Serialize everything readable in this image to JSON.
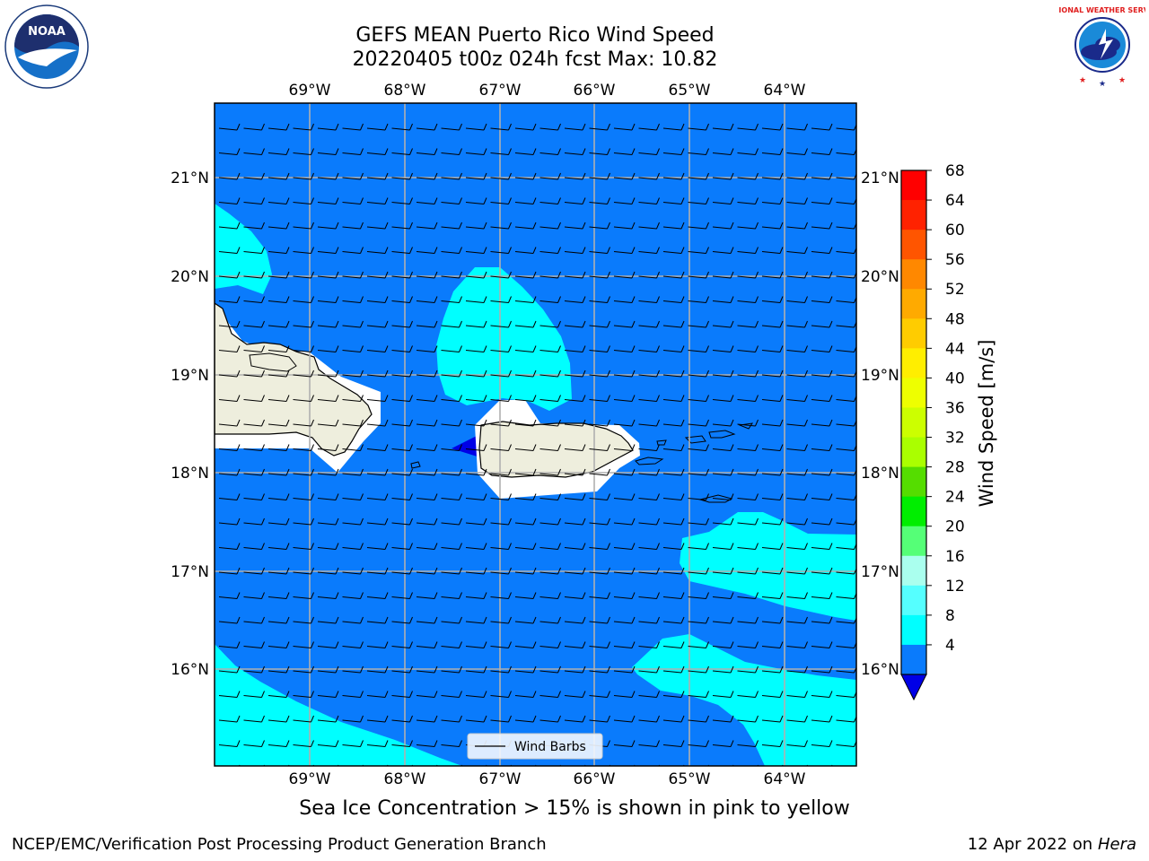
{
  "header": {
    "title_line1": "GEFS MEAN Puerto Rico Wind Speed",
    "title_line2": "20220405 t00z 024h fcst   Max: 10.82"
  },
  "map": {
    "lon_labels": [
      "69°W",
      "68°W",
      "67°W",
      "66°W",
      "65°W",
      "64°W"
    ],
    "lat_labels": [
      "21°N",
      "20°N",
      "19°N",
      "18°N",
      "17°N",
      "16°N"
    ],
    "legend_label": "Wind Barbs",
    "colors": {
      "ocean_8": "#0a7bfc",
      "band_12": "#00ffff",
      "band_4": "#0000e6",
      "land": "#eeeedd",
      "grid": "#b0b0b0"
    }
  },
  "colorbar": {
    "label": "Wind Speed [m/s]",
    "ticks": [
      "68",
      "64",
      "60",
      "56",
      "52",
      "48",
      "44",
      "40",
      "36",
      "32",
      "28",
      "24",
      "20",
      "16",
      "12",
      "8",
      "4"
    ],
    "segment_colors": [
      "#ff0000",
      "#ff2200",
      "#ff5500",
      "#ff8800",
      "#ffaa00",
      "#ffcc00",
      "#ffee00",
      "#eeff00",
      "#ccff00",
      "#aaff00",
      "#55dd00",
      "#00ee00",
      "#55ff77",
      "#aaffee",
      "#55ffff",
      "#00ffff",
      "#0a7bfc"
    ],
    "extend_color": "#0000e6"
  },
  "footer": {
    "note": "Sea Ice Concentration > 15% is shown in pink to yellow",
    "left": "NCEP/EMC/Verification Post Processing Product Generation Branch",
    "right_date": "12 Apr 2022 on",
    "right_host": "Hera"
  },
  "logos": {
    "left_name": "NOAA",
    "right_name": "NATIONAL WEATHER SERVICE"
  }
}
